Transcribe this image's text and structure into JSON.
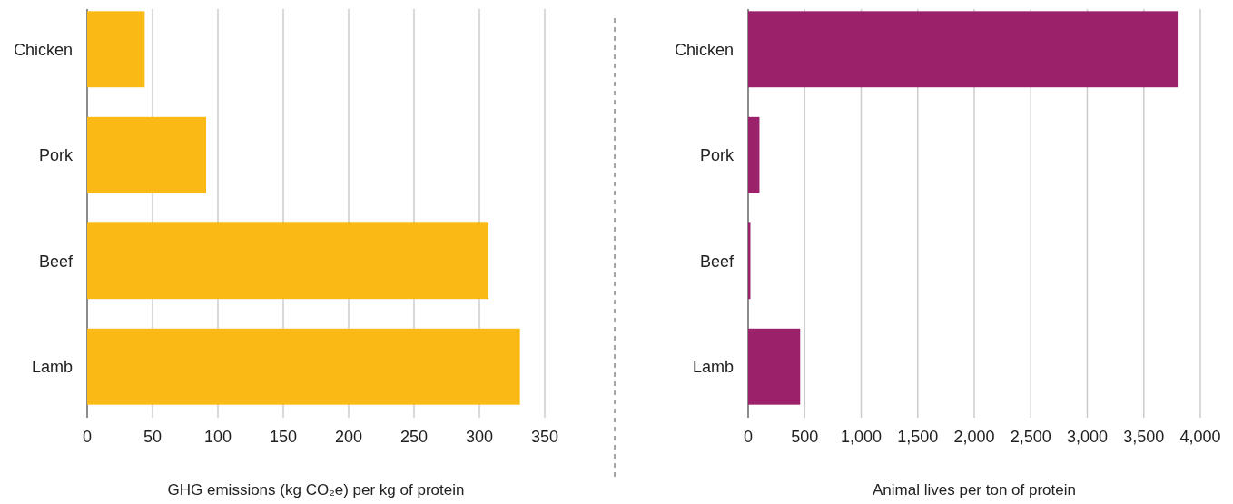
{
  "chart_data": [
    {
      "type": "bar",
      "orientation": "horizontal",
      "categories": [
        "Chicken",
        "Pork",
        "Beef",
        "Lamb"
      ],
      "values": [
        44,
        91,
        307,
        331
      ],
      "color": "#fbb915",
      "xlabel": "GHG emissions (kg CO₂e) per kg of protein",
      "xlim": [
        0,
        350
      ],
      "xticks": [
        0,
        50,
        100,
        150,
        200,
        250,
        300,
        350
      ],
      "grid": "x"
    },
    {
      "type": "bar",
      "orientation": "horizontal",
      "categories": [
        "Chicken",
        "Pork",
        "Beef",
        "Lamb"
      ],
      "values": [
        3800,
        100,
        20,
        460
      ],
      "color": "#9b216b",
      "xlabel": "Animal lives per ton of protein",
      "xlim": [
        0,
        4000
      ],
      "xticks": [
        0,
        {
          "value": 500,
          "label": "500"
        },
        {
          "value": 1000,
          "label": "1,000"
        },
        {
          "value": 1500,
          "label": "1,500"
        },
        {
          "value": 2000,
          "label": "2,000"
        },
        {
          "value": 2500,
          "label": "2,500"
        },
        {
          "value": 3000,
          "label": "3,000"
        },
        {
          "value": 3500,
          "label": "3,500"
        },
        {
          "value": 4000,
          "label": "4,000"
        }
      ],
      "grid": "x"
    }
  ]
}
